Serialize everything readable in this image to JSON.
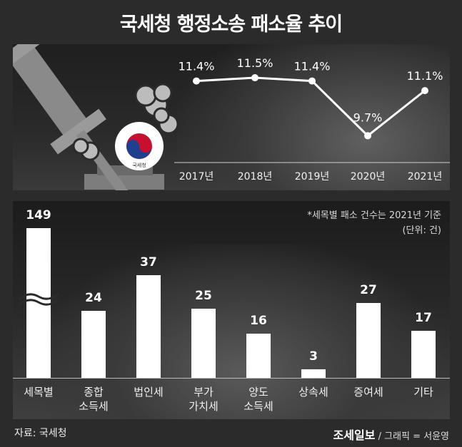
{
  "title": "국세청 행정소송 패소율 추이",
  "chart_data": [
    {
      "type": "line",
      "x": [
        "2017년",
        "2018년",
        "2019년",
        "2020년",
        "2021년"
      ],
      "values": [
        11.4,
        11.5,
        11.4,
        9.7,
        11.1
      ],
      "labels": [
        "11.4%",
        "11.5%",
        "11.4%",
        "9.7%",
        "11.1%"
      ],
      "ylim": [
        9.4,
        11.7
      ]
    },
    {
      "type": "bar",
      "categories": [
        "세목별",
        "종합\n소득세",
        "법인세",
        "부가\n가치세",
        "양도\n소득세",
        "상속세",
        "증여세",
        "기타"
      ],
      "values": [
        149,
        24,
        37,
        25,
        16,
        3,
        27,
        17
      ],
      "broken_axis": true,
      "note": "*세목별 패소 건수는 2021년 기준",
      "unit": "(단위: 건)"
    }
  ],
  "emblem_text": "국세청",
  "footer": {
    "source": "자료: 국세청",
    "brand": "조세일보",
    "credit": "/ 그래픽 = 서윤영"
  },
  "colors": {
    "background": "#2b2b2b",
    "bar": "#ffffff",
    "line": "#ffffff"
  }
}
